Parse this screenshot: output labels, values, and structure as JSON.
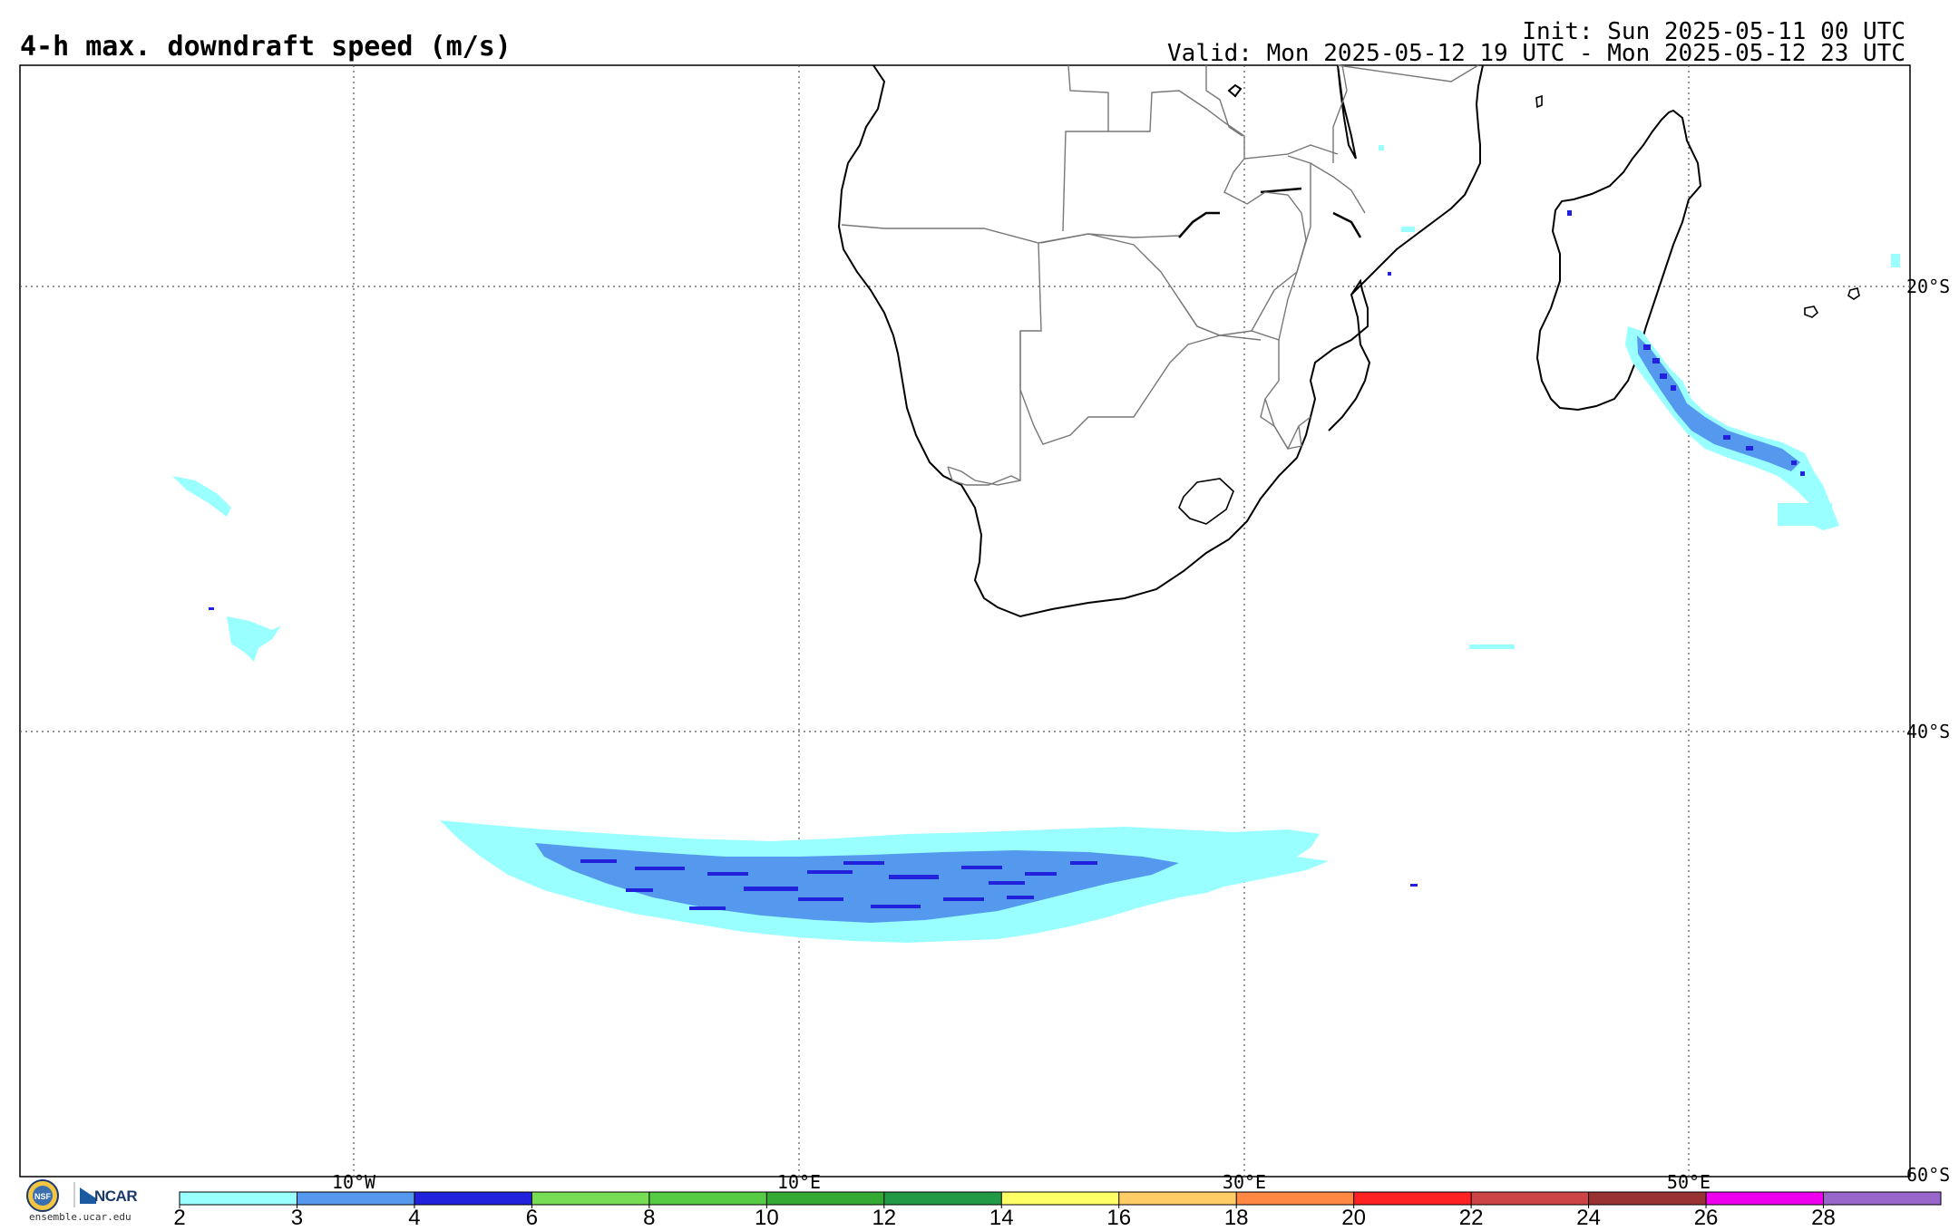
{
  "header": {
    "title": "4-h max. downdraft speed (m/s)",
    "init": "Init: Sun 2025-05-11 00 UTC",
    "valid": "Valid: Mon 2025-05-12 19 UTC - Mon 2025-05-12 23 UTC"
  },
  "map": {
    "region": "Southern Africa and South Atlantic / SW Indian Ocean",
    "lon_range": [
      -17.5,
      50.5
    ],
    "lat_range": [
      -60,
      -10
    ],
    "lat_labels": [
      "20°S",
      "40°S",
      "60°S"
    ],
    "lon_labels": [
      "10°W",
      "10°E",
      "30°E",
      "50°E"
    ],
    "gridlines": "dotted"
  },
  "colorbar": {
    "labels": [
      "2",
      "3",
      "4",
      "6",
      "8",
      "10",
      "12",
      "14",
      "16",
      "18",
      "20",
      "22",
      "24",
      "26",
      "28"
    ],
    "colors": [
      "#99ffff",
      "#5599ee",
      "#2222dd",
      "#77dd55",
      "#55cc44",
      "#33aa33",
      "#229944",
      "#ffff66",
      "#ffcc66",
      "#ff8844",
      "#ff2222",
      "#cc4444",
      "#993333",
      "#ee00ee",
      "#9966cc"
    ]
  },
  "logo": {
    "ncar": "NCAR",
    "url": "ensemble.ucar.edu"
  }
}
